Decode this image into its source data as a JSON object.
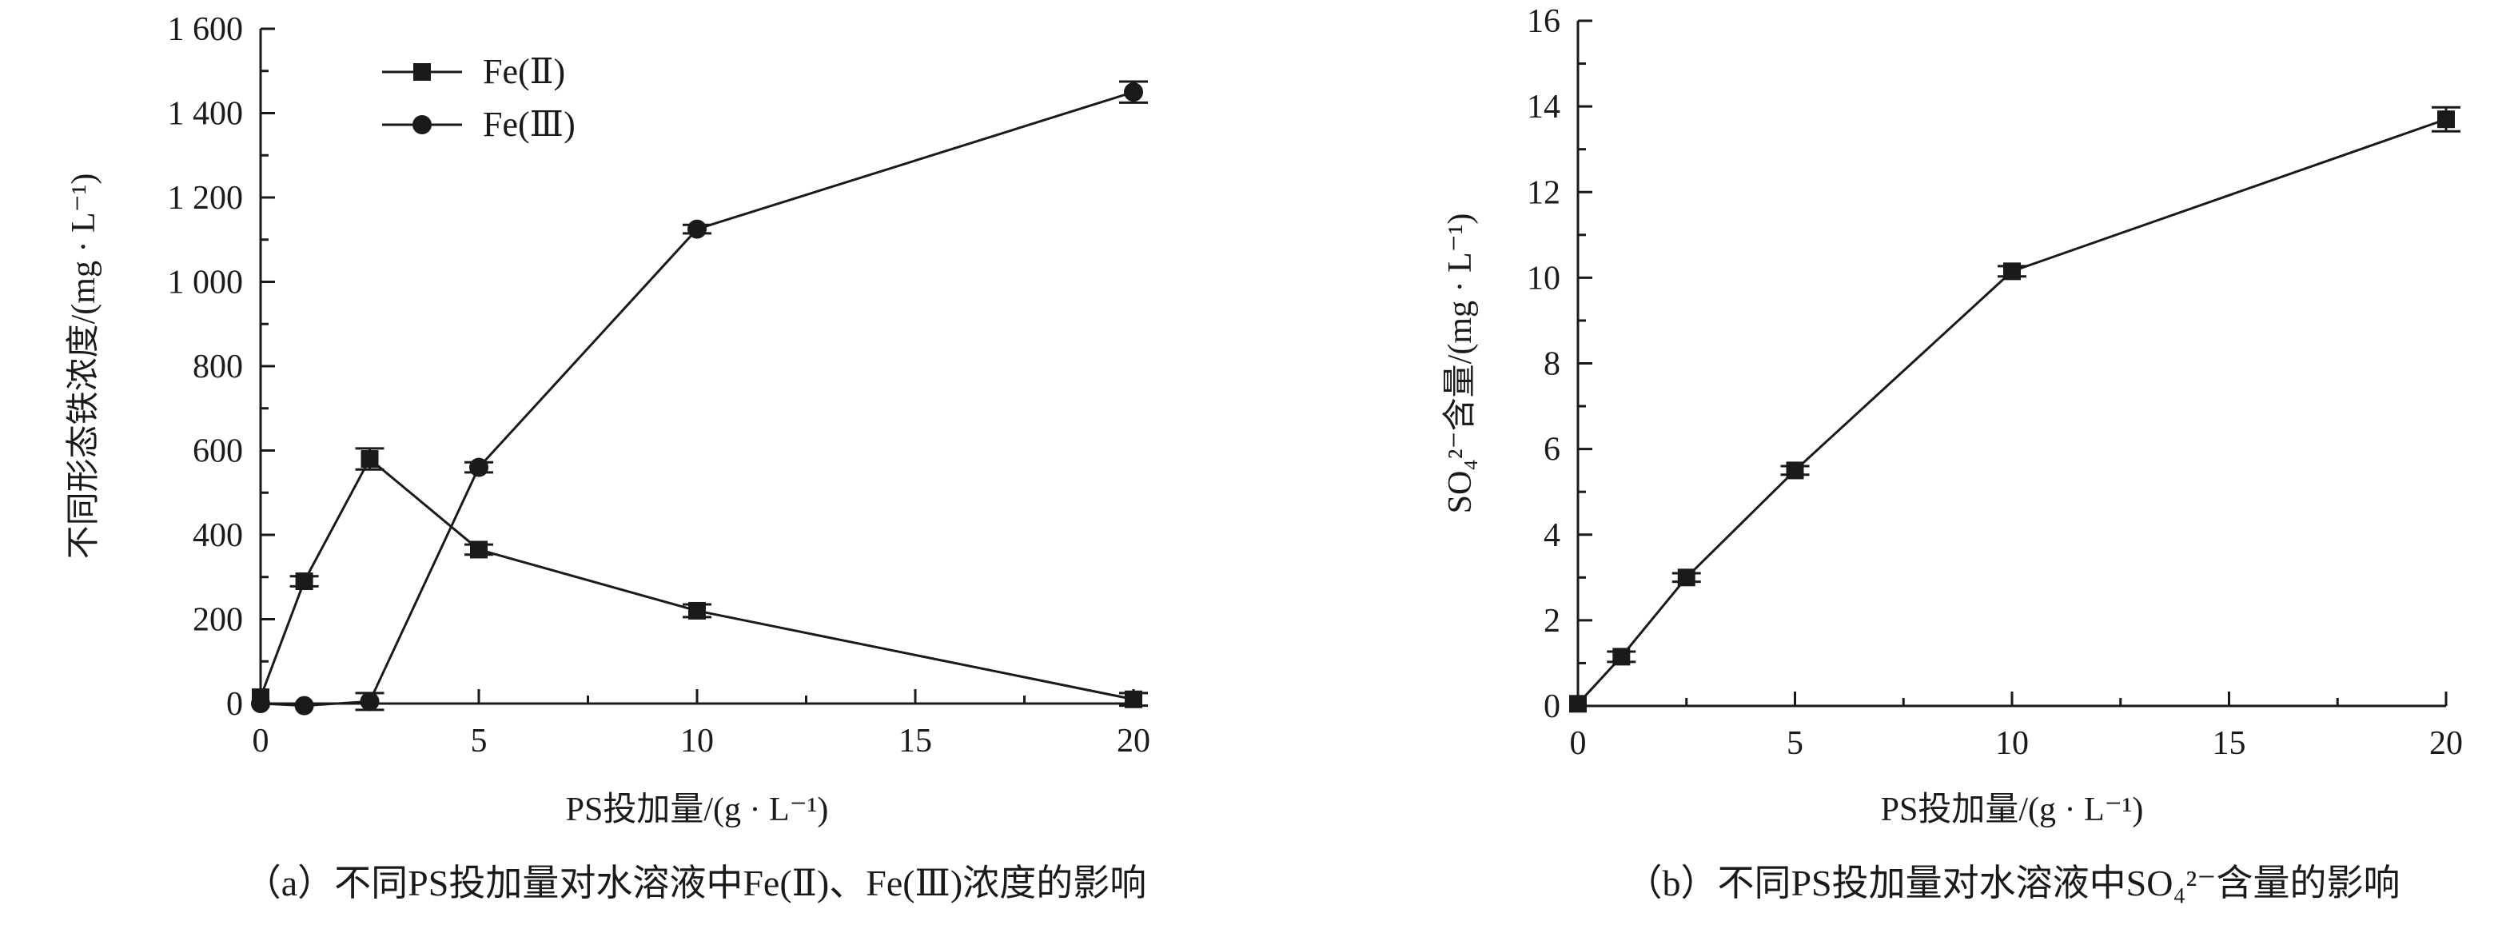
{
  "chart_data": [
    {
      "type": "line",
      "xlabel": "PS投加量/(g · L⁻¹)",
      "ylabel": "不同形态铁浓度/(mg · L⁻¹)",
      "caption": "（a）不同PS投加量对水溶液中Fe(Ⅱ)、Fe(Ⅲ)浓度的影响",
      "xlim": [
        0,
        20
      ],
      "ylim": [
        0,
        1600
      ],
      "xticks": [
        0,
        5,
        10,
        15,
        20
      ],
      "xtick_labels": [
        "0",
        "5",
        "10",
        "15",
        "20"
      ],
      "yticks": [
        0,
        200,
        400,
        600,
        800,
        1000,
        1200,
        1400,
        1600
      ],
      "ytick_labels": [
        "0",
        "200",
        "400",
        "600",
        "800",
        "1 000",
        "1 200",
        "1 400",
        "1 600"
      ],
      "legend_position": "top-left",
      "grid": false,
      "series": [
        {
          "name": "Fe(Ⅱ)",
          "marker": "square",
          "x": [
            0,
            1,
            2.5,
            5,
            10,
            20
          ],
          "y": [
            15,
            290,
            580,
            365,
            220,
            10
          ],
          "error": [
            0,
            12,
            25,
            12,
            15,
            15
          ]
        },
        {
          "name": "Fe(Ⅲ)",
          "marker": "circle",
          "x": [
            0,
            1,
            2.5,
            5,
            10,
            20
          ],
          "y": [
            0,
            -5,
            5,
            560,
            1125,
            1450
          ],
          "error": [
            0,
            0,
            20,
            12,
            10,
            25
          ]
        }
      ]
    },
    {
      "type": "line",
      "xlabel": "PS投加量/(g · L⁻¹)",
      "ylabel": "SO₄²⁻含量/(mg · L⁻¹)",
      "caption": "（b）不同PS投加量对水溶液中SO₄²⁻含量的影响",
      "xlim": [
        0,
        20
      ],
      "ylim": [
        0,
        16
      ],
      "xticks": [
        0,
        5,
        10,
        15,
        20
      ],
      "xtick_labels": [
        "0",
        "5",
        "10",
        "15",
        "20"
      ],
      "yticks": [
        0,
        2,
        4,
        6,
        8,
        10,
        12,
        14,
        16
      ],
      "ytick_labels": [
        "0",
        "2",
        "4",
        "6",
        "8",
        "10",
        "12",
        "14",
        "16"
      ],
      "grid": false,
      "series": [
        {
          "marker": "square",
          "x": [
            0,
            1,
            2.5,
            5,
            10,
            20
          ],
          "y": [
            0.05,
            1.15,
            3.0,
            5.5,
            10.15,
            13.7
          ],
          "error": [
            0,
            0.12,
            0.1,
            0.1,
            0.12,
            0.28
          ]
        }
      ]
    }
  ]
}
